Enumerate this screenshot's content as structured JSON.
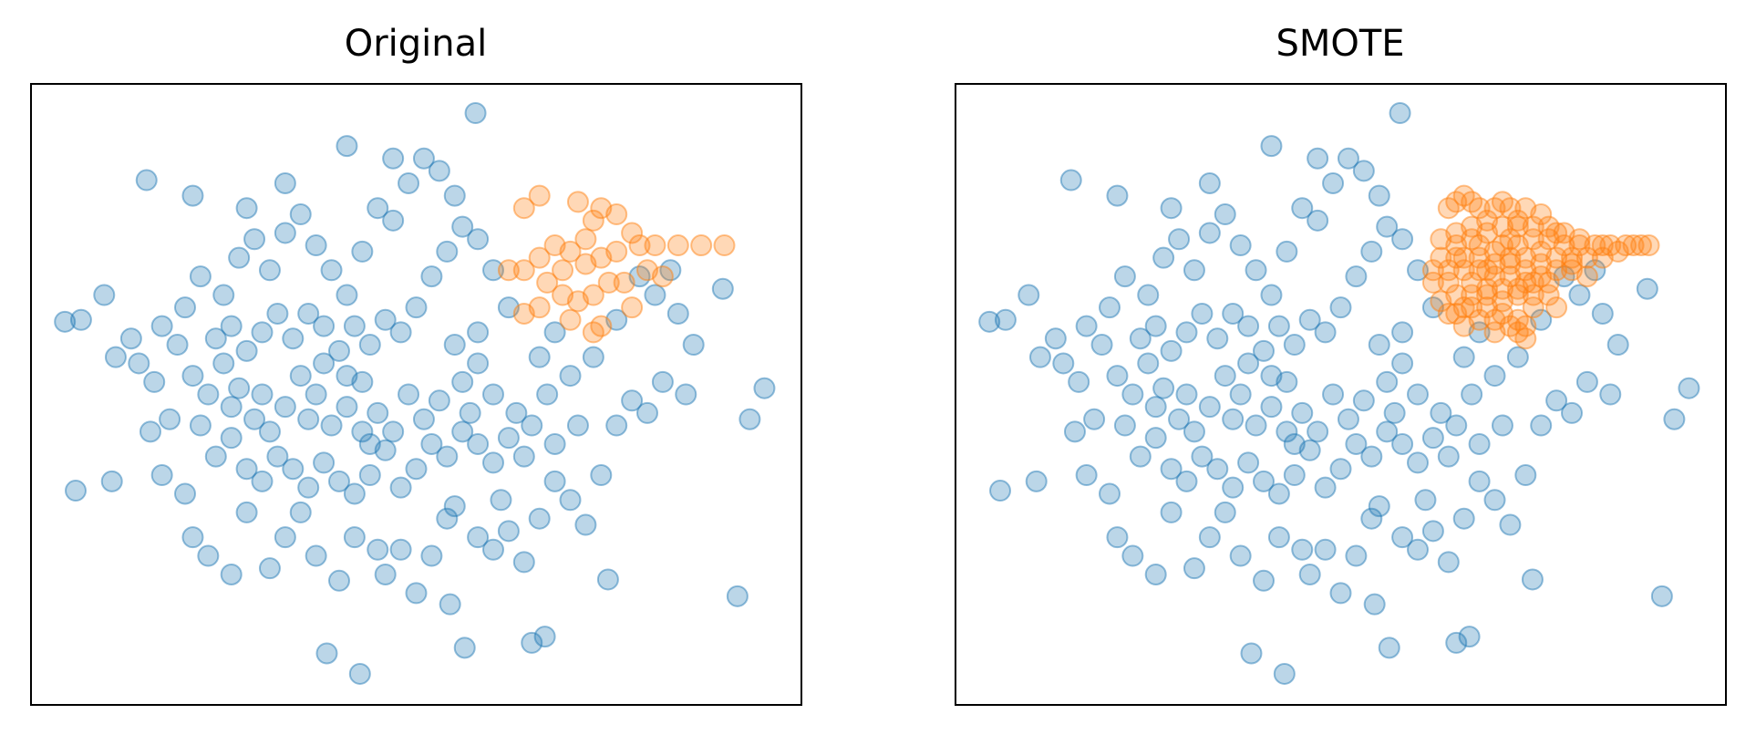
{
  "chart_data": [
    {
      "type": "scatter",
      "title": "Original",
      "xlim": [
        0,
        100
      ],
      "ylim": [
        0,
        100
      ],
      "alpha": 0.3,
      "series": [
        {
          "color": "#1f77b4",
          "x": [
            57.7,
            41,
            15,
            4.4,
            6.5,
            5.8,
            38.4,
            42.7,
            95.2,
            91.7,
            89.8,
            93.3,
            54.4,
            74.9,
            66.7,
            56.3,
            65,
            9.5,
            11,
            13,
            10.5,
            17,
            15.5,
            18,
            20,
            21,
            23,
            26,
            28,
            31,
            33,
            35,
            37,
            40,
            42,
            45,
            46,
            48,
            50,
            52,
            54,
            55,
            58,
            60,
            61,
            62,
            64,
            66,
            68,
            70,
            72,
            74,
            76,
            78,
            80,
            82,
            85,
            86,
            84,
            81,
            83,
            79,
            76,
            73,
            70,
            67,
            65,
            63,
            60,
            58,
            56,
            53,
            51,
            49,
            47,
            45,
            43,
            41,
            39,
            37,
            35,
            33,
            31,
            29,
            27,
            25,
            23,
            21,
            19,
            17,
            16,
            14,
            20,
            22,
            25,
            27,
            29,
            31,
            33,
            35,
            37,
            39,
            41,
            43,
            45,
            47,
            49,
            51,
            53,
            55,
            56,
            54,
            52,
            50,
            48,
            46,
            44,
            42,
            40,
            38,
            36,
            34,
            32,
            30,
            28,
            26,
            24,
            22,
            24,
            26,
            28,
            30,
            32,
            34,
            36,
            38,
            40,
            42,
            44,
            46,
            48,
            50,
            52,
            54,
            56,
            58,
            60,
            62,
            64,
            66,
            68,
            62,
            60,
            58,
            28,
            21,
            33,
            47,
            68,
            71,
            55,
            58,
            44,
            43,
            38,
            36,
            41,
            30,
            26,
            57
          ],
          "y": [
            95.3,
            90,
            84.5,
            61.7,
            62,
            34.5,
            8.3,
            5,
            51,
            17.5,
            67,
            46,
            16.2,
            20.2,
            11,
            9.2,
            10,
            66,
            56,
            59,
            36,
            37,
            44,
            46,
            34,
            27,
            24,
            21,
            31,
            22,
            27,
            31,
            24,
            20,
            27,
            25,
            21,
            25,
            18,
            24,
            30,
            32,
            27,
            25,
            33,
            28,
            23,
            30,
            36,
            33,
            29,
            37,
            45,
            49,
            47,
            52,
            50,
            58,
            63,
            66,
            70,
            69,
            62,
            56,
            53,
            50,
            45,
            47,
            50,
            55,
            52,
            49,
            46,
            50,
            44,
            47,
            52,
            48,
            45,
            50,
            53,
            48,
            44,
            46,
            51,
            55,
            50,
            53,
            58,
            61,
            52,
            55,
            64,
            69,
            66,
            72,
            75,
            70,
            76,
            79,
            74,
            70,
            66,
            73,
            80,
            78,
            84,
            88,
            86,
            82,
            77,
            73,
            69,
            64,
            60,
            62,
            58,
            61,
            57,
            61,
            63,
            59,
            63,
            60,
            57,
            61,
            59,
            45,
            40,
            43,
            38,
            36,
            40,
            38,
            35,
            39,
            36,
            34,
            37,
            41,
            35,
            38,
            42,
            40,
            44,
            42,
            39,
            43,
            40,
            56,
            60,
            64,
            70,
            75,
            80,
            82,
            84,
            88,
            42,
            45,
            58,
            60,
            42,
            44,
            55,
            46,
            53,
            50,
            48,
            47
          ]
        },
        {
          "color": "#ff7f0e",
          "x": [
            64,
            66,
            71,
            74,
            73,
            76,
            78,
            72,
            70,
            68,
            66,
            64,
            62,
            67,
            69,
            72,
            74,
            76,
            79,
            81,
            84,
            87,
            90,
            75,
            73,
            71,
            69,
            66,
            64,
            70,
            73,
            74,
            77,
            80,
            82,
            78
          ],
          "y": [
            80,
            82,
            81,
            80,
            78,
            79,
            76,
            75,
            73,
            74,
            72,
            70,
            70,
            68,
            70,
            71,
            72,
            73,
            74,
            74,
            74,
            74,
            74,
            68,
            66,
            65,
            66,
            64,
            63,
            62,
            60,
            61,
            68,
            70,
            69,
            64
          ]
        }
      ]
    },
    {
      "type": "scatter",
      "title": "SMOTE",
      "xlim": [
        0,
        100
      ],
      "ylim": [
        0,
        100
      ],
      "alpha": 0.3,
      "series": [
        {
          "color": "#1f77b4",
          "x": [
            57.7,
            41,
            15,
            4.4,
            6.5,
            5.8,
            38.4,
            42.7,
            95.2,
            91.7,
            89.8,
            93.3,
            54.4,
            74.9,
            66.7,
            56.3,
            65,
            9.5,
            11,
            13,
            10.5,
            17,
            15.5,
            18,
            20,
            21,
            23,
            26,
            28,
            31,
            33,
            35,
            37,
            40,
            42,
            45,
            46,
            48,
            50,
            52,
            54,
            55,
            58,
            60,
            61,
            62,
            64,
            66,
            68,
            70,
            72,
            74,
            76,
            78,
            80,
            82,
            85,
            86,
            84,
            81,
            83,
            79,
            76,
            73,
            70,
            67,
            65,
            63,
            60,
            58,
            56,
            53,
            51,
            49,
            47,
            45,
            43,
            41,
            39,
            37,
            35,
            33,
            31,
            29,
            27,
            25,
            23,
            21,
            19,
            17,
            16,
            14,
            20,
            22,
            25,
            27,
            29,
            31,
            33,
            35,
            37,
            39,
            41,
            43,
            45,
            47,
            49,
            51,
            53,
            55,
            56,
            54,
            52,
            50,
            48,
            46,
            44,
            42,
            40,
            38,
            36,
            34,
            32,
            30,
            28,
            26,
            24,
            22,
            24,
            26,
            28,
            30,
            32,
            34,
            36,
            38,
            40,
            42,
            44,
            46,
            48,
            50,
            52,
            54,
            56,
            58,
            60,
            62,
            64,
            66,
            68,
            62,
            60,
            58,
            28,
            21,
            33,
            47,
            68,
            71,
            55,
            58,
            44,
            43,
            38,
            36,
            41,
            30,
            26,
            57
          ],
          "y": [
            95.3,
            90,
            84.5,
            61.7,
            62,
            34.5,
            8.3,
            5,
            51,
            17.5,
            67,
            46,
            16.2,
            20.2,
            11,
            9.2,
            10,
            66,
            56,
            59,
            36,
            37,
            44,
            46,
            34,
            27,
            24,
            21,
            31,
            22,
            27,
            31,
            24,
            20,
            27,
            25,
            21,
            25,
            18,
            24,
            30,
            32,
            27,
            25,
            33,
            28,
            23,
            30,
            36,
            33,
            29,
            37,
            45,
            49,
            47,
            52,
            50,
            58,
            63,
            66,
            70,
            69,
            62,
            56,
            53,
            50,
            45,
            47,
            50,
            55,
            52,
            49,
            46,
            50,
            44,
            47,
            52,
            48,
            45,
            50,
            53,
            48,
            44,
            46,
            51,
            55,
            50,
            53,
            58,
            61,
            52,
            55,
            64,
            69,
            66,
            72,
            75,
            70,
            76,
            79,
            74,
            70,
            66,
            73,
            80,
            78,
            84,
            88,
            86,
            82,
            77,
            73,
            69,
            64,
            60,
            62,
            58,
            61,
            57,
            61,
            63,
            59,
            63,
            60,
            57,
            61,
            59,
            45,
            40,
            43,
            38,
            36,
            40,
            38,
            35,
            39,
            36,
            34,
            37,
            41,
            35,
            38,
            42,
            40,
            44,
            42,
            39,
            43,
            40,
            56,
            60,
            64,
            70,
            75,
            80,
            82,
            84,
            88,
            42,
            45,
            58,
            60,
            42,
            44,
            55,
            46,
            53,
            50,
            48,
            47
          ]
        },
        {
          "color": "#ff7f0e",
          "x": [
            64,
            66,
            71,
            74,
            73,
            76,
            78,
            72,
            70,
            68,
            66,
            64,
            62,
            67,
            69,
            72,
            74,
            76,
            79,
            81,
            84,
            87,
            90,
            75,
            73,
            71,
            69,
            66,
            64,
            70,
            73,
            74,
            77,
            80,
            82,
            78,
            65,
            67,
            68,
            70,
            72,
            69,
            67,
            65,
            63,
            65,
            67,
            69,
            71,
            73,
            75,
            77,
            71,
            73,
            75,
            77,
            79,
            81,
            83,
            85,
            86,
            88,
            89,
            63,
            65,
            68,
            70,
            72,
            74,
            76,
            78,
            80,
            82,
            84,
            62,
            64,
            66,
            68,
            70,
            72,
            74,
            76,
            78,
            80,
            63,
            65,
            67,
            69,
            71,
            73,
            75,
            77,
            65,
            67,
            69,
            71,
            73,
            75,
            72,
            70,
            74,
            68,
            66
          ],
          "y": [
            80,
            82,
            81,
            80,
            78,
            79,
            76,
            75,
            73,
            74,
            72,
            70,
            70,
            68,
            70,
            71,
            72,
            73,
            74,
            74,
            74,
            74,
            74,
            68,
            66,
            65,
            66,
            64,
            63,
            62,
            60,
            61,
            68,
            70,
            69,
            64,
            81,
            81,
            80,
            80,
            80,
            78,
            77,
            76,
            75,
            74,
            75,
            76,
            77,
            77,
            77,
            77,
            74,
            74,
            75,
            75,
            76,
            75,
            74,
            74,
            73,
            74,
            74,
            72,
            72,
            72,
            71,
            72,
            70,
            71,
            72,
            72,
            72,
            72,
            68,
            68,
            70,
            70,
            69,
            69,
            68,
            69,
            70,
            71,
            65,
            66,
            66,
            67,
            67,
            67,
            66,
            66,
            63,
            64,
            64,
            63,
            62,
            64,
            61,
            60,
            59,
            62,
            61
          ]
        }
      ]
    }
  ]
}
